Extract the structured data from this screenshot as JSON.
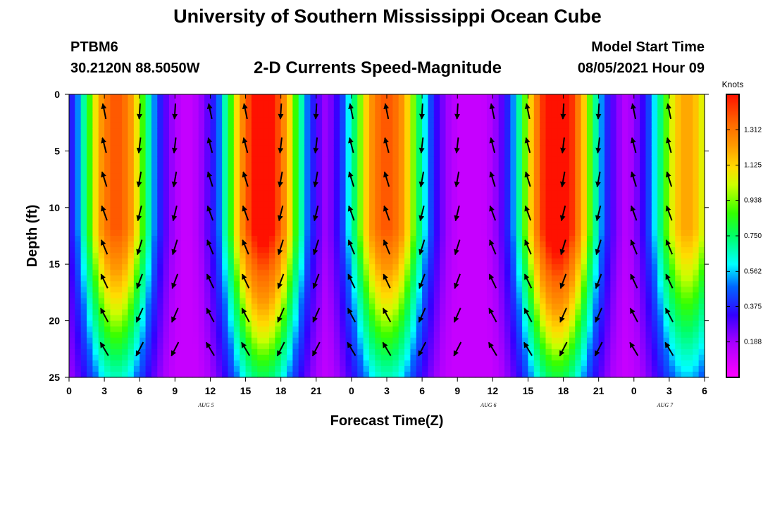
{
  "header": {
    "title": "University of Southern Mississippi Ocean Cube",
    "station": "PTBM6",
    "coords": "30.2120N  88.5050W",
    "subtitle": "2-D Currents Speed-Magnitude",
    "model_start_label": "Model Start Time",
    "model_start_value": "08/05/2021 Hour 09"
  },
  "footer": {
    "title": "University of Southern Mississippi Ocean Cube"
  },
  "chart_data": {
    "type": "heatmap",
    "title": "2-D Currents Speed-Magnitude",
    "xlabel": "Forecast Time(Z)",
    "ylabel": "Depth (ft)",
    "x_unit": "hours since 08/05/2021 00Z",
    "xlim": [
      0,
      54
    ],
    "ylim": [
      0,
      25
    ],
    "y_inverted": true,
    "x_tick_values": [
      0,
      3,
      6,
      9,
      12,
      15,
      18,
      21,
      24,
      27,
      30,
      33,
      36,
      39,
      42,
      45,
      48,
      51,
      54
    ],
    "x_tick_labels": [
      "0",
      "3",
      "6",
      "9",
      "12",
      "15",
      "18",
      "21",
      "0",
      "3",
      "6",
      "9",
      "12",
      "15",
      "18",
      "21",
      "0",
      "3",
      "6"
    ],
    "y_tick_values": [
      0,
      5,
      10,
      15,
      20,
      25
    ],
    "y_tick_labels": [
      "0",
      "5",
      "10",
      "15",
      "20",
      "25"
    ],
    "date_labels": [
      {
        "x": 12,
        "text": "AUG 5"
      },
      {
        "x": 36,
        "text": "AUG 6"
      },
      {
        "x": 51,
        "text": "AUG 7"
      }
    ],
    "colorbar": {
      "unit": "Knots",
      "range": [
        0,
        1.5
      ],
      "tick_values": [
        0.188,
        0.375,
        0.562,
        0.75,
        0.938,
        1.125,
        1.312
      ],
      "tick_labels": [
        "0.188",
        "0.375",
        "0.562",
        "0.750",
        "0.938",
        "1.125",
        "1.312"
      ]
    },
    "grid": false,
    "legend": "right",
    "vectors_shown": true
  }
}
